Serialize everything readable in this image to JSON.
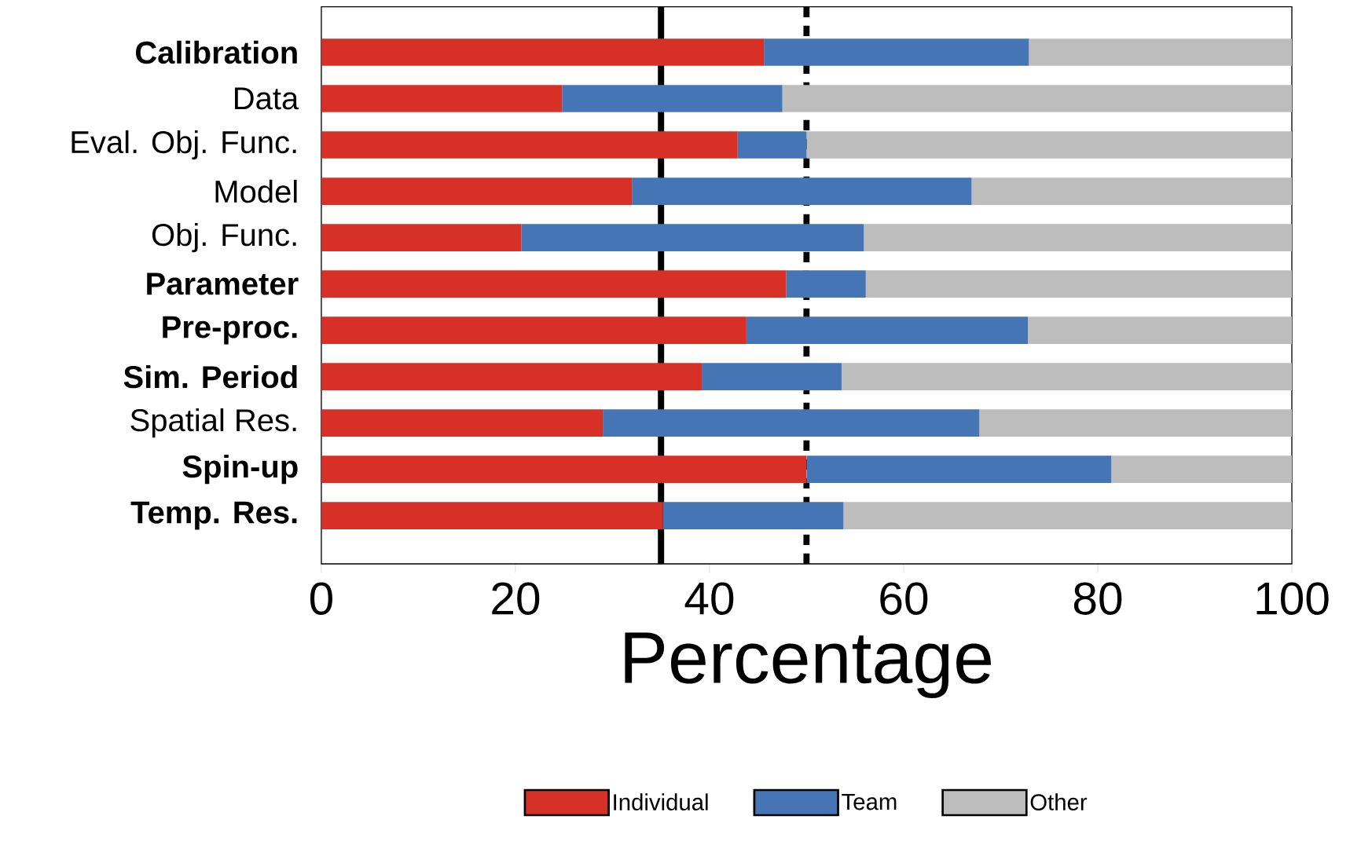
{
  "chart_data": {
    "type": "bar",
    "orientation": "horizontal",
    "stacked": true,
    "xlabel": "Percentage",
    "categories": [
      "**Calibration**",
      "Data",
      "Eval. Obj. Func.",
      "Model",
      "Obj. Func.",
      "**Parameter**",
      "**Pre-proc.**",
      "**Sim. Period**",
      "Spatial Res.",
      "**Spin-up**",
      "**Temp. Res.**"
    ],
    "series": [
      {
        "name": "Individual",
        "color": "#d73027",
        "values": [
          45.6,
          24.8,
          42.9,
          32.0,
          20.6,
          47.9,
          43.8,
          39.2,
          29.0,
          50.0,
          35.2
        ]
      },
      {
        "name": "Team",
        "color": "#4575b4",
        "values": [
          27.3,
          22.7,
          7.1,
          35.0,
          35.3,
          8.2,
          29.0,
          14.4,
          38.8,
          31.4,
          18.6
        ]
      },
      {
        "name": "Other",
        "color": "#bdbdbd",
        "values": [
          27.1,
          52.5,
          50.0,
          33.0,
          44.1,
          43.9,
          27.2,
          46.4,
          32.2,
          18.6,
          46.2
        ]
      }
    ],
    "xlim": [
      0,
      100
    ],
    "xticks": [
      0,
      20,
      40,
      60,
      80,
      100
    ],
    "ref_lines": [
      {
        "axis": "x",
        "value": 35,
        "line_style": "solid",
        "color": "#000000"
      },
      {
        "axis": "x",
        "value": 50,
        "line_style": "dashed",
        "color": "#000000"
      }
    ],
    "legend": "bottom"
  }
}
